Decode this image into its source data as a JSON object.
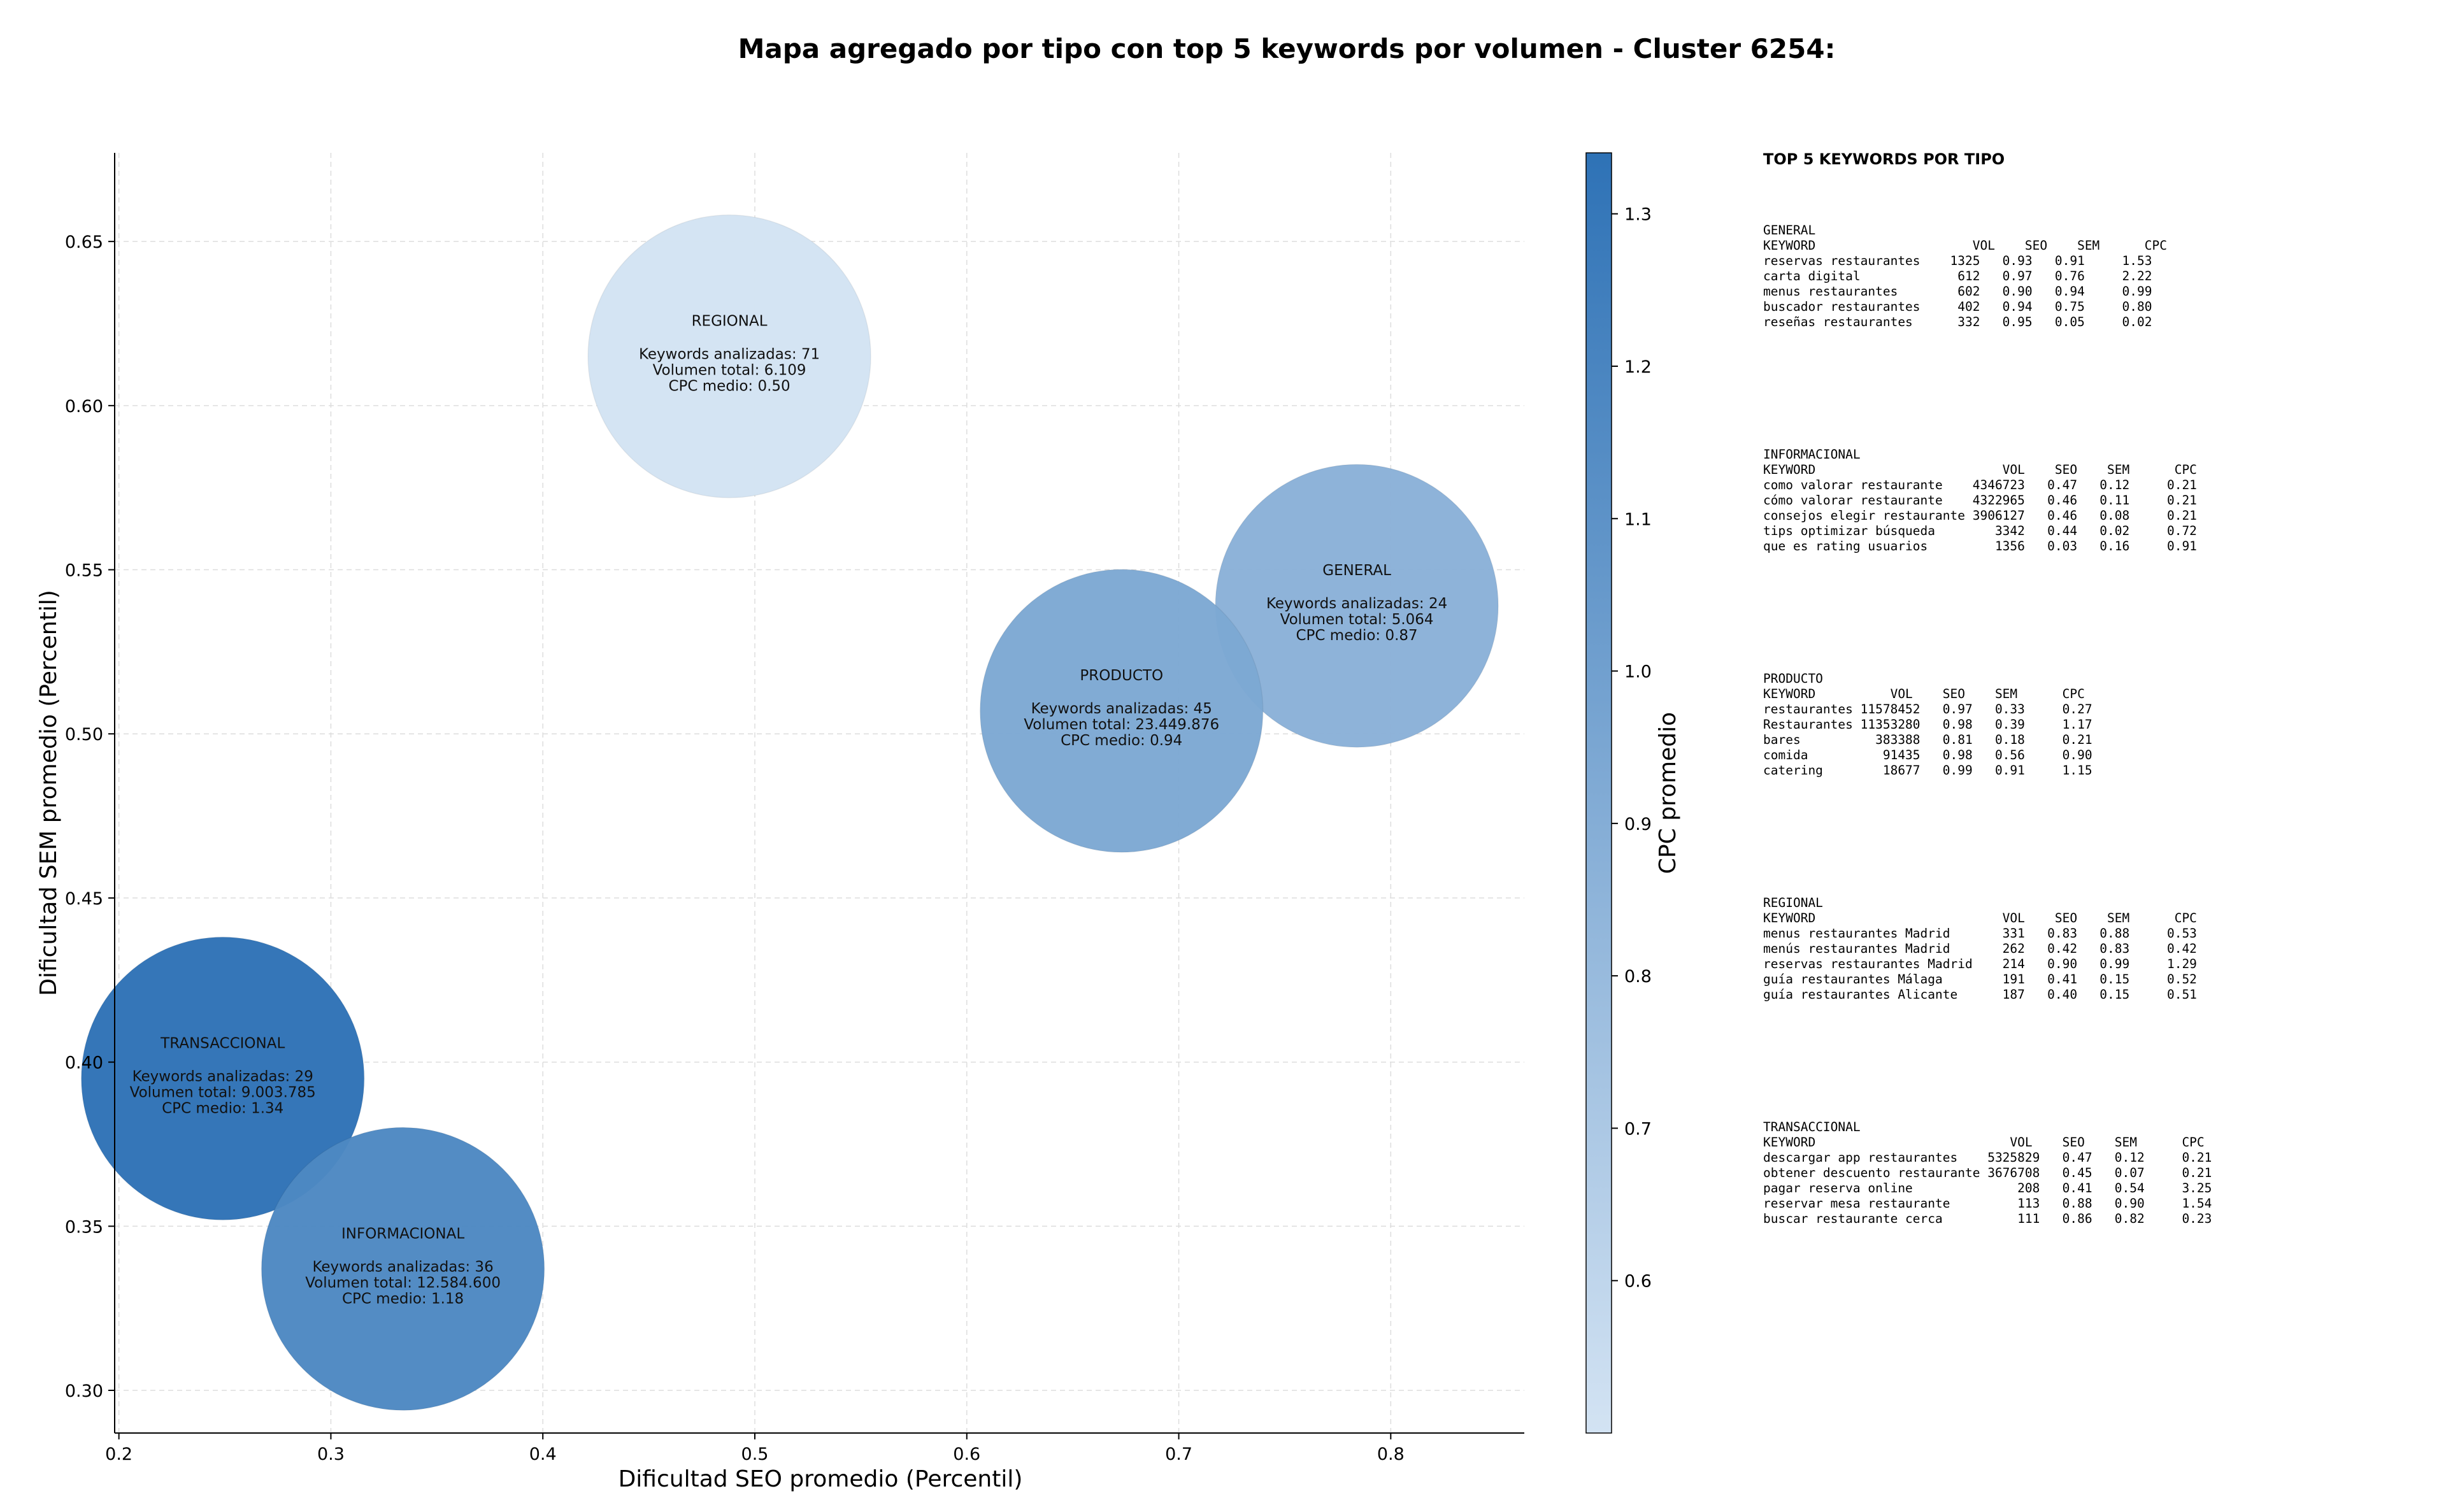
{
  "chart_data": {
    "type": "scatter",
    "title": "Mapa agregado por tipo con top 5 keywords por volumen - Cluster 6254:",
    "xlabel": "Dificultad SEO promedio (Percentil)",
    "ylabel": "Dificultad SEM promedio (Percentil)",
    "xlim": [
      0.198,
      0.863
    ],
    "ylim": [
      0.287,
      0.677
    ],
    "xticks": [
      "0.2",
      "0.3",
      "0.4",
      "0.5",
      "0.6",
      "0.7",
      "0.8"
    ],
    "yticks": [
      "0.30",
      "0.35",
      "0.40",
      "0.45",
      "0.50",
      "0.55",
      "0.60",
      "0.65"
    ],
    "grid": true,
    "colorbar": {
      "label": "CPC promedio",
      "range": [
        0.5,
        1.34
      ],
      "ticks": [
        "0.6",
        "0.7",
        "0.8",
        "0.9",
        "1.0",
        "1.1",
        "1.2",
        "1.3"
      ],
      "color_low": "#d3e3f3",
      "color_high": "#2e72b6"
    },
    "points": [
      {
        "name": "REGIONAL",
        "x": 0.488,
        "y": 0.615,
        "cpc": 0.5,
        "keywords": 71,
        "volume": 6109,
        "l1": "REGIONAL",
        "l2": "Keywords analizadas: 71",
        "l3": "Volumen total: 6.109",
        "l4": "CPC medio: 0.50"
      },
      {
        "name": "GENERAL",
        "x": 0.784,
        "y": 0.539,
        "cpc": 0.87,
        "keywords": 24,
        "volume": 5064,
        "l1": "GENERAL",
        "l2": "Keywords analizadas: 24",
        "l3": "Volumen total: 5.064",
        "l4": "CPC medio: 0.87"
      },
      {
        "name": "PRODUCTO",
        "x": 0.673,
        "y": 0.507,
        "cpc": 0.94,
        "keywords": 45,
        "volume": 23449876,
        "l1": "PRODUCTO",
        "l2": "Keywords analizadas: 45",
        "l3": "Volumen total: 23.449.876",
        "l4": "CPC medio: 0.94"
      },
      {
        "name": "TRANSACCIONAL",
        "x": 0.249,
        "y": 0.395,
        "cpc": 1.34,
        "keywords": 29,
        "volume": 9003785,
        "l1": "TRANSACCIONAL",
        "l2": "Keywords analizadas: 29",
        "l3": "Volumen total: 9.003.785",
        "l4": "CPC medio: 1.34"
      },
      {
        "name": "INFORMACIONAL",
        "x": 0.334,
        "y": 0.337,
        "cpc": 1.18,
        "keywords": 36,
        "volume": 12584600,
        "l1": "INFORMACIONAL",
        "l2": "Keywords analizadas: 36",
        "l3": "Volumen total: 12.584.600",
        "l4": "CPC medio: 1.18"
      }
    ]
  },
  "side_panel": {
    "title": "TOP 5 KEYWORDS POR TIPO",
    "blocks": [
      {
        "lines": [
          "GENERAL",
          "KEYWORD                     VOL    SEO    SEM      CPC",
          "reservas restaurantes    1325   0.93   0.91     1.53",
          "carta digital             612   0.97   0.76     2.22",
          "menus restaurantes        602   0.90   0.94     0.99",
          "buscador restaurantes     402   0.94   0.75     0.80",
          "reseñas restaurantes      332   0.95   0.05     0.02"
        ]
      },
      {
        "lines": [
          "INFORMACIONAL",
          "KEYWORD                         VOL    SEO    SEM      CPC",
          "como valorar restaurante    4346723   0.47   0.12     0.21",
          "cómo valorar restaurante    4322965   0.46   0.11     0.21",
          "consejos elegir restaurante 3906127   0.46   0.08     0.21",
          "tips optimizar búsqueda        3342   0.44   0.02     0.72",
          "que es rating usuarios         1356   0.03   0.16     0.91"
        ]
      },
      {
        "lines": [
          "PRODUCTO",
          "KEYWORD          VOL    SEO    SEM      CPC",
          "restaurantes 11578452   0.97   0.33     0.27",
          "Restaurantes 11353280   0.98   0.39     1.17",
          "bares          383388   0.81   0.18     0.21",
          "comida          91435   0.98   0.56     0.90",
          "catering        18677   0.99   0.91     1.15"
        ]
      },
      {
        "lines": [
          "REGIONAL",
          "KEYWORD                         VOL    SEO    SEM      CPC",
          "menus restaurantes Madrid       331   0.83   0.88     0.53",
          "menús restaurantes Madrid       262   0.42   0.83     0.42",
          "reservas restaurantes Madrid    214   0.90   0.99     1.29",
          "guía restaurantes Málaga        191   0.41   0.15     0.52",
          "guía restaurantes Alicante      187   0.40   0.15     0.51"
        ]
      },
      {
        "lines": [
          "TRANSACCIONAL",
          "KEYWORD                          VOL    SEO    SEM      CPC",
          "descargar app restaurantes    5325829   0.47   0.12     0.21",
          "obtener descuento restaurante 3676708   0.45   0.07     0.21",
          "pagar reserva online              208   0.41   0.54     3.25",
          "reservar mesa restaurante         113   0.88   0.90     1.54",
          "buscar restaurante cerca          111   0.86   0.82     0.23"
        ]
      }
    ]
  }
}
